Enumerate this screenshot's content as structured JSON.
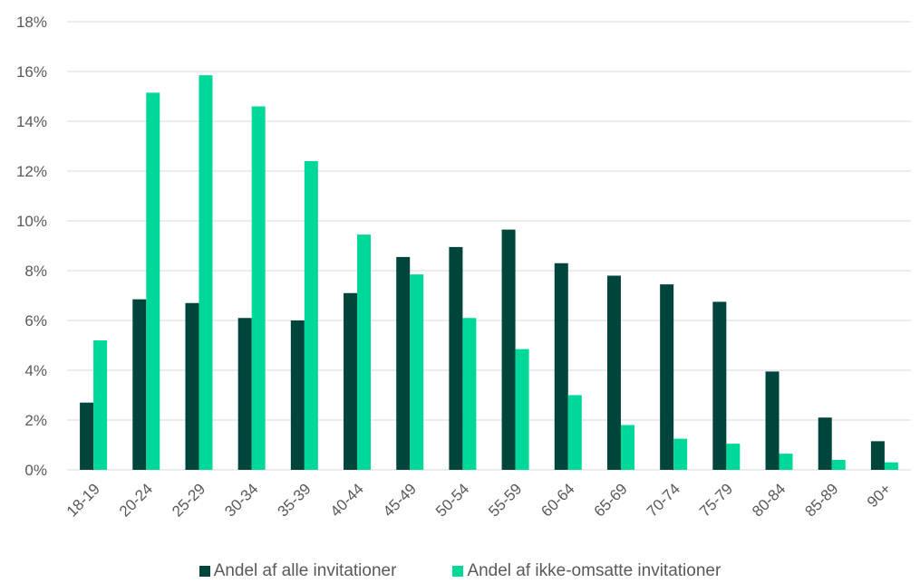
{
  "colors": {
    "series1": "#00453b",
    "series2": "#00d899",
    "grid": "#d9d9d9",
    "text": "#595959"
  },
  "chart_data": {
    "type": "bar",
    "categories": [
      "18-19",
      "20-24",
      "25-29",
      "30-34",
      "35-39",
      "40-44",
      "45-49",
      "50-54",
      "55-59",
      "60-64",
      "65-69",
      "70-74",
      "75-79",
      "80-84",
      "85-89",
      "90+"
    ],
    "series": [
      {
        "name": "Andel af alle invitationer",
        "values": [
          2.7,
          6.85,
          6.7,
          6.1,
          6.0,
          7.1,
          8.55,
          8.95,
          9.65,
          8.3,
          7.8,
          7.45,
          6.75,
          3.95,
          2.1,
          1.15
        ]
      },
      {
        "name": "Andel af ikke-omsatte invitationer",
        "values": [
          5.2,
          15.15,
          15.85,
          14.6,
          12.4,
          9.45,
          7.85,
          6.1,
          4.85,
          3.0,
          1.8,
          1.25,
          1.05,
          0.65,
          0.4,
          0.3
        ]
      }
    ],
    "ylim": [
      0,
      18
    ],
    "yticks": [
      "0%",
      "2%",
      "4%",
      "6%",
      "8%",
      "10%",
      "12%",
      "14%",
      "16%",
      "18%"
    ],
    "grid": true,
    "legend": "bottom"
  }
}
